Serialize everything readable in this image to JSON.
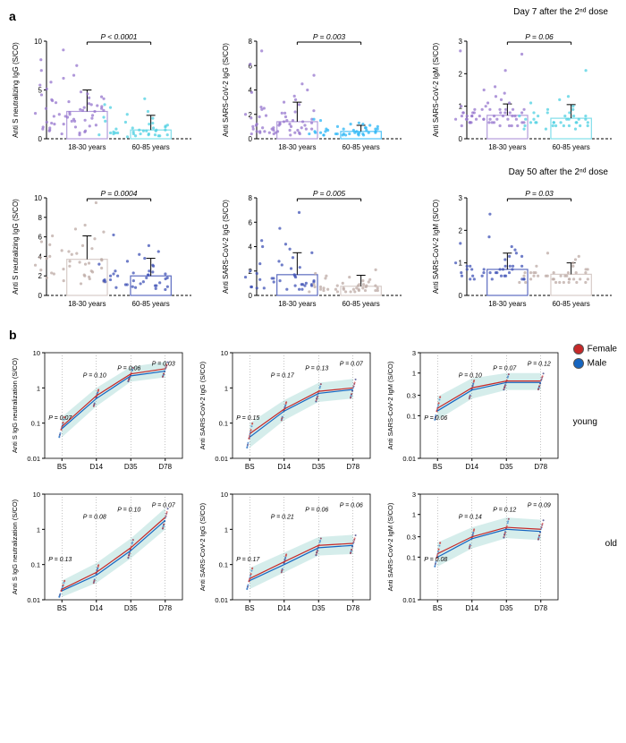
{
  "panel_a": {
    "label": "a",
    "top_right_label": "Day 7 after the 2ⁿᵈ dose",
    "bottom_right_label": "Day 50 after the 2ⁿᵈ dose",
    "row1": [
      {
        "ylabel": "Anti S neutralizing IgG (S/CO)",
        "p_text": "P < 0.0001",
        "ylim": [
          0,
          10
        ],
        "ytick_step": 5,
        "groups": [
          {
            "label": "18-30 years",
            "mean": 2.8,
            "sd": 2.2,
            "bar_color": "#b39ddb",
            "points_color": "#9575cd"
          },
          {
            "label": "60-85 years",
            "mean": 0.9,
            "sd": 1.5,
            "bar_color": "#80deea",
            "points_color": "#4dd0e1"
          }
        ],
        "points": [
          [
            2.5,
            3.1,
            1.8,
            4.2,
            2.9,
            0.8,
            3.5,
            1.2,
            5.1,
            2.3,
            3.8,
            1.5,
            4.5,
            2.7,
            6.2,
            1.9,
            3.3,
            0.7,
            2.1,
            4.8,
            1.4,
            3.6,
            2.4,
            0.9,
            5.5,
            1.7,
            3.9,
            2.6,
            8.1,
            1.1,
            4.1,
            2.8,
            0.6,
            3.2,
            7.5,
            1.3,
            2.9,
            4.3,
            1.6,
            0.5,
            3.7,
            2.2,
            5.8,
            1.0,
            2.5,
            3.4,
            0.4,
            4.6,
            1.8,
            2.0,
            3.0,
            6.5,
            9.1,
            1.5,
            0.8,
            2.3,
            4.0,
            1.2,
            3.1,
            7.0
          ],
          [
            0.5,
            1.2,
            0.3,
            2.1,
            0.8,
            1.5,
            0.4,
            0.9,
            3.2,
            0.6,
            1.1,
            0.2,
            1.8,
            0.7,
            2.5,
            0.5,
            1.3,
            0.4,
            0.8,
            4.1,
            0.3,
            1.6,
            0.9,
            0.5,
            2.2,
            0.6,
            1.0,
            0.4,
            3.5,
            0.7,
            1.4,
            0.3,
            0.8,
            2.8,
            0.5,
            1.1,
            0.4,
            0.9,
            0.6,
            1.7
          ]
        ]
      },
      {
        "ylabel": "Anti SARS-CoV-2 IgG (S/CO)",
        "p_text": "P = 0.003",
        "ylim": [
          0,
          8
        ],
        "ytick_step": 2,
        "groups": [
          {
            "label": "18-30 years",
            "mean": 1.4,
            "sd": 1.6,
            "bar_color": "#b39ddb",
            "points_color": "#9575cd"
          },
          {
            "label": "60-85 years",
            "mean": 0.6,
            "sd": 0.5,
            "bar_color": "#4fc3f7",
            "points_color": "#29b6f6"
          }
        ],
        "points": [
          [
            1.2,
            0.8,
            2.1,
            0.5,
            1.5,
            3.2,
            0.9,
            1.8,
            0.6,
            2.5,
            1.1,
            0.4,
            3.8,
            1.3,
            0.7,
            2.2,
            1.6,
            0.5,
            4.5,
            1.0,
            0.8,
            2.8,
            1.4,
            0.6,
            6.1,
            1.2,
            0.9,
            2.0,
            1.7,
            0.5,
            5.2,
            1.1,
            0.7,
            3.5,
            1.5,
            0.4,
            2.3,
            1.3,
            7.2,
            0.8,
            1.9,
            0.6,
            2.6,
            1.0,
            0.5,
            4.0,
            1.2,
            0.7,
            2.1,
            1.4,
            0.3,
            3.0,
            0.9,
            0.6,
            1.8,
            0.5,
            2.4,
            0.8,
            1.1,
            0.4
          ],
          [
            0.4,
            0.8,
            0.3,
            1.2,
            0.6,
            0.5,
            0.9,
            0.4,
            1.5,
            0.7,
            0.3,
            1.0,
            0.5,
            0.8,
            0.4,
            1.3,
            0.6,
            0.3,
            0.9,
            0.5,
            1.1,
            0.4,
            0.7,
            0.3,
            1.6,
            0.5,
            0.8,
            0.4,
            0.6,
            0.3,
            1.0,
            0.5,
            0.7,
            0.4,
            1.2,
            0.3,
            0.8,
            0.5,
            0.6,
            0.4
          ]
        ]
      },
      {
        "ylabel": "Anti SARS-CoV-2 IgM (S/CO)",
        "p_text": "P = 0.06",
        "ylim": [
          0,
          3
        ],
        "ytick_step": 1,
        "groups": [
          {
            "label": "18-30 years",
            "mean": 0.72,
            "sd": 0.35,
            "bar_color": "#b39ddb",
            "points_color": "#9575cd"
          },
          {
            "label": "60-85 years",
            "mean": 0.63,
            "sd": 0.42,
            "bar_color": "#80deea",
            "points_color": "#4dd0e1"
          }
        ],
        "points": [
          [
            0.6,
            0.8,
            0.5,
            1.1,
            0.7,
            0.9,
            0.4,
            1.3,
            0.6,
            0.8,
            0.5,
            1.5,
            0.7,
            0.9,
            0.6,
            2.1,
            0.5,
            0.8,
            0.7,
            1.2,
            0.6,
            0.4,
            0.9,
            0.5,
            2.7,
            0.7,
            0.8,
            0.6,
            1.0,
            0.5,
            0.9,
            0.7,
            0.4,
            1.4,
            0.6,
            0.8,
            0.5,
            2.6,
            0.7,
            0.9,
            0.6,
            1.1,
            0.5,
            0.8,
            0.7,
            0.4,
            0.9,
            0.6,
            1.6,
            0.5,
            0.8,
            0.7,
            0.6,
            0.9,
            0.5,
            1.0,
            0.7,
            0.8,
            0.6,
            0.4
          ],
          [
            0.5,
            0.7,
            0.4,
            1.0,
            0.6,
            0.8,
            0.3,
            1.2,
            0.5,
            0.7,
            0.4,
            0.9,
            0.6,
            0.5,
            0.8,
            0.4,
            2.1,
            0.6,
            0.5,
            0.7,
            0.4,
            0.9,
            0.5,
            0.6,
            0.3,
            1.1,
            0.5,
            0.7,
            0.4,
            0.8,
            0.5,
            0.6,
            0.4,
            1.3,
            0.5,
            0.7,
            0.4,
            0.6,
            0.5,
            0.3
          ]
        ]
      }
    ],
    "row2": [
      {
        "ylabel": "Anti S neutralizing IgG (S/CO)",
        "p_text": "P = 0.0004",
        "ylim": [
          0,
          10
        ],
        "ytick_step": 2,
        "groups": [
          {
            "label": "18-30 years",
            "mean": 3.7,
            "sd": 2.4,
            "bar_color": "#d7ccc8",
            "points_color": "#bcaaa4"
          },
          {
            "label": "60-85 years",
            "mean": 2.0,
            "sd": 1.8,
            "bar_color": "#5c6bc0",
            "points_color": "#3f51b5"
          }
        ],
        "points": [
          [
            3.5,
            2.8,
            4.2,
            1.9,
            5.1,
            3.2,
            2.5,
            6.8,
            3.8,
            2.2,
            4.5,
            1.5,
            5.5,
            3.0,
            2.7,
            7.2,
            3.6,
            2.0,
            4.8,
            1.2,
            9.5,
            3.3,
            2.4,
            5.2,
            3.9,
            1.8,
            6.1,
            3.1,
            2.6,
            4.0,
            1.4,
            5.8,
            3.4,
            2.1,
            4.3,
            1.7,
            6.5,
            3.7,
            2.3,
            4.6
          ],
          [
            1.5,
            2.2,
            0.8,
            3.1,
            1.8,
            2.5,
            1.0,
            4.2,
            1.6,
            2.0,
            0.9,
            3.5,
            1.4,
            2.3,
            1.1,
            5.1,
            1.7,
            2.1,
            0.7,
            3.8,
            1.3,
            2.4,
            1.0,
            6.2,
            1.5,
            2.0,
            0.8,
            3.2,
            1.6,
            2.2,
            0.9,
            4.5,
            1.4,
            2.1,
            1.2,
            3.0,
            1.8,
            0.6,
            2.5,
            1.1
          ]
        ]
      },
      {
        "ylabel": "Anti SARS-CoV-2 IgG (S/CO)",
        "p_text": "P = 0.005",
        "ylim": [
          0,
          8
        ],
        "ytick_step": 2,
        "groups": [
          {
            "label": "18-30 years",
            "mean": 1.7,
            "sd": 1.8,
            "bar_color": "#5c6bc0",
            "points_color": "#3f51b5"
          },
          {
            "label": "60-85 years",
            "mean": 0.75,
            "sd": 0.9,
            "bar_color": "#d7ccc8",
            "points_color": "#bcaaa4"
          }
        ],
        "points": [
          [
            1.2,
            0.8,
            2.5,
            0.5,
            3.1,
            1.5,
            0.9,
            4.2,
            1.8,
            0.6,
            2.8,
            1.1,
            0.7,
            5.5,
            1.4,
            0.8,
            3.5,
            1.6,
            0.5,
            2.2,
            1.0,
            6.8,
            0.9,
            1.3,
            2.0,
            0.6,
            4.0,
            1.5,
            0.7,
            2.6,
            1.2,
            0.8,
            3.8,
            1.7,
            0.5,
            2.3,
            1.1,
            0.9,
            4.5,
            1.4
          ],
          [
            0.5,
            0.8,
            0.3,
            1.2,
            0.6,
            0.9,
            0.4,
            1.5,
            0.7,
            0.5,
            1.0,
            0.3,
            1.8,
            0.6,
            0.8,
            0.4,
            2.1,
            0.5,
            0.7,
            0.3,
            1.3,
            0.6,
            0.8,
            0.4,
            0.9,
            0.5,
            1.6,
            0.3,
            0.7,
            0.6,
            0.4,
            1.1,
            0.5,
            0.8,
            0.3,
            0.9,
            0.6,
            0.4,
            1.4,
            0.5
          ]
        ]
      },
      {
        "ylabel": "Anti SARS-CoV-2 IgM (S/CO)",
        "p_text": "P = 0.03",
        "ylim": [
          0,
          3
        ],
        "ytick_step": 1,
        "groups": [
          {
            "label": "18-30 years",
            "mean": 0.8,
            "sd": 0.5,
            "bar_color": "#5c6bc0",
            "points_color": "#3f51b5"
          },
          {
            "label": "60-85 years",
            "mean": 0.65,
            "sd": 0.35,
            "bar_color": "#d7ccc8",
            "points_color": "#bcaaa4"
          }
        ],
        "points": [
          [
            0.7,
            0.9,
            0.5,
            1.2,
            0.8,
            0.6,
            1.5,
            0.7,
            0.9,
            0.5,
            1.8,
            0.8,
            0.6,
            2.5,
            0.7,
            0.9,
            0.5,
            1.1,
            0.8,
            0.6,
            1.3,
            0.7,
            0.9,
            0.5,
            1.6,
            0.8,
            0.6,
            1.0,
            0.7,
            0.9,
            0.5,
            1.4,
            0.8,
            0.6,
            0.7,
            0.9,
            0.5,
            1.2,
            0.8,
            0.6
          ],
          [
            0.5,
            0.7,
            0.4,
            0.9,
            0.6,
            0.5,
            1.1,
            0.4,
            0.7,
            0.6,
            0.5,
            1.3,
            0.4,
            0.7,
            0.6,
            0.5,
            0.8,
            0.4,
            0.7,
            0.6,
            0.5,
            1.0,
            0.4,
            0.7,
            0.6,
            0.5,
            0.9,
            0.4,
            0.7,
            0.6,
            0.5,
            1.2,
            0.4,
            0.7,
            0.6,
            0.5,
            0.8,
            0.4,
            0.7,
            0.6
          ]
        ]
      }
    ]
  },
  "panel_b": {
    "label": "b",
    "legend": {
      "female_color": "#c62828",
      "male_color": "#1565c0",
      "female_label": "Female",
      "male_label": "Male"
    },
    "row_labels": [
      "young",
      "old"
    ],
    "xticks": [
      "BS",
      "D14",
      "D35",
      "D78"
    ],
    "yticks": [
      0.01,
      0.1,
      1.0,
      10.0
    ],
    "yticks_igm": [
      0.01,
      0.1,
      0.3,
      1.0,
      3.0
    ],
    "band_color": "#b2dfdb",
    "row1": [
      {
        "ylabel": "Anti S IgG neutralization (S/CO)",
        "p_texts": [
          "P = 0.07",
          "P = 0.10",
          "P = 0.06",
          "P = 0.03"
        ],
        "yticks": [
          0.01,
          0.1,
          1.0,
          10.0
        ],
        "curve_female": [
          0.08,
          0.6,
          2.5,
          3.5
        ],
        "curve_male": [
          0.07,
          0.5,
          2.2,
          3.0
        ],
        "band_lo": [
          0.04,
          0.3,
          1.5,
          2.0
        ],
        "band_hi": [
          0.15,
          1.0,
          4.0,
          5.5
        ]
      },
      {
        "ylabel": "Anti SARS-CoV-2 IgG (S/CO)",
        "p_texts": [
          "P = 0.15",
          "P = 0.17",
          "P = 0.13",
          "P = 0.07"
        ],
        "yticks": [
          0.01,
          0.1,
          1.0,
          10.0
        ],
        "curve_female": [
          0.05,
          0.25,
          0.8,
          1.0
        ],
        "curve_male": [
          0.04,
          0.22,
          0.7,
          0.9
        ],
        "band_lo": [
          0.02,
          0.12,
          0.4,
          0.5
        ],
        "band_hi": [
          0.1,
          0.45,
          1.4,
          1.8
        ]
      },
      {
        "ylabel": "Anti SARS-CoV-2 IgM (S/CO)",
        "p_texts": [
          "P = 0.06",
          "P = 0.10",
          "P = 0.07",
          "P = 0.12"
        ],
        "yticks": [
          0.01,
          0.1,
          0.3,
          1.0,
          3.0
        ],
        "curve_female": [
          0.15,
          0.45,
          0.65,
          0.65
        ],
        "curve_male": [
          0.13,
          0.4,
          0.6,
          0.6
        ],
        "band_lo": [
          0.08,
          0.25,
          0.4,
          0.4
        ],
        "band_hi": [
          0.28,
          0.75,
          1.0,
          1.0
        ]
      }
    ],
    "row2": [
      {
        "ylabel": "Anti S IgG neutralization (S/CO)",
        "p_texts": [
          "P = 0.13",
          "P = 0.08",
          "P = 0.10",
          "P = 0.07"
        ],
        "yticks": [
          0.01,
          0.1,
          1.0,
          10.0
        ],
        "curve_female": [
          0.02,
          0.06,
          0.3,
          2.2
        ],
        "curve_male": [
          0.018,
          0.05,
          0.25,
          1.8
        ],
        "band_lo": [
          0.012,
          0.03,
          0.15,
          1.0
        ],
        "band_hi": [
          0.035,
          0.11,
          0.55,
          4.0
        ]
      },
      {
        "ylabel": "Anti SARS-CoV-2 IgG (S/CO)",
        "p_texts": [
          "P = 0.17",
          "P = 0.21",
          "P = 0.06",
          "P = 0.06"
        ],
        "yticks": [
          0.01,
          0.1,
          1.0,
          10.0
        ],
        "curve_female": [
          0.04,
          0.12,
          0.35,
          0.4
        ],
        "curve_male": [
          0.035,
          0.1,
          0.3,
          0.35
        ],
        "band_lo": [
          0.02,
          0.06,
          0.18,
          0.2
        ],
        "band_hi": [
          0.08,
          0.22,
          0.6,
          0.7
        ]
      },
      {
        "ylabel": "Anti SARS-CoV-2 IgM (S/CO)",
        "p_texts": [
          "P = 0.08",
          "P = 0.14",
          "P = 0.12",
          "P = 0.09"
        ],
        "yticks": [
          0.01,
          0.1,
          0.3,
          1.0,
          3.0
        ],
        "curve_female": [
          0.12,
          0.3,
          0.5,
          0.45
        ],
        "curve_male": [
          0.1,
          0.27,
          0.45,
          0.4
        ],
        "band_lo": [
          0.06,
          0.16,
          0.28,
          0.25
        ],
        "band_hi": [
          0.22,
          0.5,
          0.85,
          0.75
        ]
      }
    ]
  }
}
